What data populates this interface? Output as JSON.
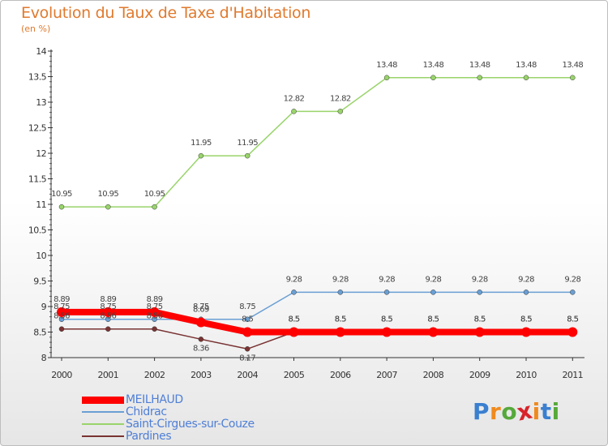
{
  "header": {
    "title": "Evolution du Taux de Taxe d'Habitation",
    "subtitle": "(en %)"
  },
  "logo": {
    "letters": [
      "P",
      "r",
      "o",
      "x",
      "i",
      "t",
      "i"
    ],
    "colors": [
      "#3a7fd0",
      "#f08a1e",
      "#56a93a",
      "#d8232a",
      "#f08a1e",
      "#3a7fd0",
      "#56a93a"
    ]
  },
  "chart_data": {
    "type": "line",
    "title": "Evolution du Taux de Taxe d'Habitation",
    "subtitle": "(en %)",
    "ylim": [
      8,
      14
    ],
    "yticks": [
      "8",
      "8.5",
      "9",
      "9.5",
      "10",
      "10.5",
      "11",
      "11.5",
      "12",
      "12.5",
      "13",
      "13.5",
      "14"
    ],
    "categories": [
      "2000",
      "2001",
      "2002",
      "2003",
      "2004",
      "2005",
      "2006",
      "2007",
      "2008",
      "2009",
      "2010",
      "2011"
    ],
    "grid": false,
    "legend_position": "bottom-left",
    "series": [
      {
        "name": "MEILHAUD",
        "color": "#ff0000",
        "values": [
          8.89,
          8.89,
          8.89,
          8.69,
          8.5,
          8.5,
          8.5,
          8.5,
          8.5,
          8.5,
          8.5,
          8.5
        ],
        "labels": [
          "8.89",
          "8.89",
          "8.89",
          "8.69",
          "8.5",
          "8.5",
          "8.5",
          "8.5",
          "8.5",
          "8.5",
          "8.5",
          "8.5"
        ]
      },
      {
        "name": "Chidrac",
        "color": "#6a9fd4",
        "values": [
          8.75,
          8.75,
          8.75,
          8.75,
          8.75,
          9.28,
          9.28,
          9.28,
          9.28,
          9.28,
          9.28,
          9.28
        ],
        "labels": [
          "8.75",
          "8.75",
          "8.75",
          "8.75",
          "8.75",
          "9.28",
          "9.28",
          "9.28",
          "9.28",
          "9.28",
          "9.28",
          "9.28"
        ]
      },
      {
        "name": "Saint-Cirgues-sur-Couze",
        "color": "#99d46b",
        "values": [
          10.95,
          10.95,
          10.95,
          11.95,
          11.95,
          12.82,
          12.82,
          13.48,
          13.48,
          13.48,
          13.48,
          13.48
        ],
        "labels": [
          "10.95",
          "10.95",
          "10.95",
          "11.95",
          "11.95",
          "12.82",
          "12.82",
          "13.48",
          "13.48",
          "13.48",
          "13.48",
          "13.48"
        ]
      },
      {
        "name": "Pardines",
        "color": "#7a3333",
        "values": [
          8.56,
          8.56,
          8.56,
          8.36,
          8.17,
          8.5,
          8.5,
          8.5,
          8.5,
          8.5,
          8.5,
          8.5
        ],
        "labels": [
          "8.56",
          "8.56",
          "8.56",
          "8.36",
          "8.17",
          "8.5",
          "8.5",
          "8.5",
          "8.5",
          "8.5",
          "8.5",
          "8.5"
        ]
      }
    ]
  }
}
